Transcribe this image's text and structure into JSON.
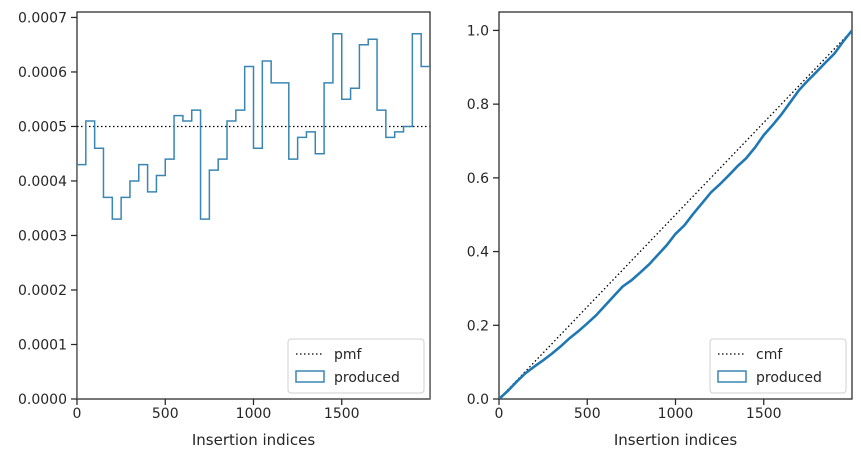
{
  "chart_data": [
    {
      "type": "histogram-step",
      "xlabel": "Insertion indices",
      "ylabel": "",
      "xlim": [
        0,
        2000
      ],
      "ylim": [
        0,
        0.00071
      ],
      "xticks": [
        0,
        500,
        1000,
        1500
      ],
      "xtick_labels": [
        "0",
        "500",
        "1000",
        "1500"
      ],
      "yticks": [
        0,
        0.0001,
        0.0002,
        0.0003,
        0.0004,
        0.0005,
        0.0006,
        0.0007
      ],
      "ytick_labels": [
        "0.0000",
        "0.0001",
        "0.0002",
        "0.0003",
        "0.0004",
        "0.0005",
        "0.0006",
        "0.0007"
      ],
      "legend_position": "lower-right",
      "legend": [
        {
          "label": "pmf",
          "style": "dotted",
          "color": "#000000"
        },
        {
          "label": "produced",
          "style": "step",
          "color": "#3a86b2"
        }
      ],
      "pmf": 0.0005,
      "bin_width": 50,
      "bin_edges_start": 0,
      "produced": [
        0.00043,
        0.00051,
        0.00046,
        0.00037,
        0.00033,
        0.00037,
        0.0004,
        0.00043,
        0.00038,
        0.00041,
        0.00044,
        0.00052,
        0.00051,
        0.00053,
        0.00033,
        0.00042,
        0.00044,
        0.00051,
        0.00053,
        0.00061,
        0.00046,
        0.00062,
        0.00058,
        0.00058,
        0.00044,
        0.00048,
        0.00049,
        0.00045,
        0.00058,
        0.00067,
        0.00055,
        0.00057,
        0.00065,
        0.00066,
        0.00053,
        0.00048,
        0.00049,
        0.0005,
        0.00067,
        0.00061
      ]
    },
    {
      "type": "line",
      "xlabel": "Insertion indices",
      "ylabel": "",
      "xlim": [
        0,
        2000
      ],
      "ylim": [
        0,
        1.05
      ],
      "xticks": [
        0,
        500,
        1000,
        1500
      ],
      "xtick_labels": [
        "0",
        "500",
        "1000",
        "1500"
      ],
      "yticks": [
        0,
        0.2,
        0.4,
        0.6,
        0.8,
        1.0
      ],
      "ytick_labels": [
        "0.0",
        "0.2",
        "0.4",
        "0.6",
        "0.8",
        "1.0"
      ],
      "legend_position": "lower-right",
      "legend": [
        {
          "label": "cmf",
          "style": "dotted",
          "color": "#000000"
        },
        {
          "label": "produced",
          "style": "step",
          "color": "#3a86b2"
        }
      ],
      "cmf": {
        "x": [
          0,
          2000
        ],
        "y": [
          0,
          1.0
        ]
      },
      "produced": {
        "x": [
          0,
          50,
          100,
          150,
          200,
          250,
          300,
          350,
          400,
          450,
          500,
          550,
          600,
          650,
          700,
          750,
          800,
          850,
          900,
          950,
          1000,
          1050,
          1100,
          1150,
          1200,
          1250,
          1300,
          1350,
          1400,
          1450,
          1500,
          1550,
          1600,
          1650,
          1700,
          1750,
          1800,
          1850,
          1900,
          1950,
          2000
        ],
        "y": [
          0,
          0.022,
          0.047,
          0.07,
          0.088,
          0.105,
          0.123,
          0.143,
          0.165,
          0.184,
          0.205,
          0.227,
          0.253,
          0.279,
          0.305,
          0.322,
          0.343,
          0.365,
          0.391,
          0.417,
          0.448,
          0.471,
          0.502,
          0.531,
          0.56,
          0.582,
          0.606,
          0.631,
          0.653,
          0.682,
          0.716,
          0.743,
          0.772,
          0.805,
          0.838,
          0.864,
          0.888,
          0.913,
          0.937,
          0.97,
          1.0
        ]
      }
    }
  ]
}
